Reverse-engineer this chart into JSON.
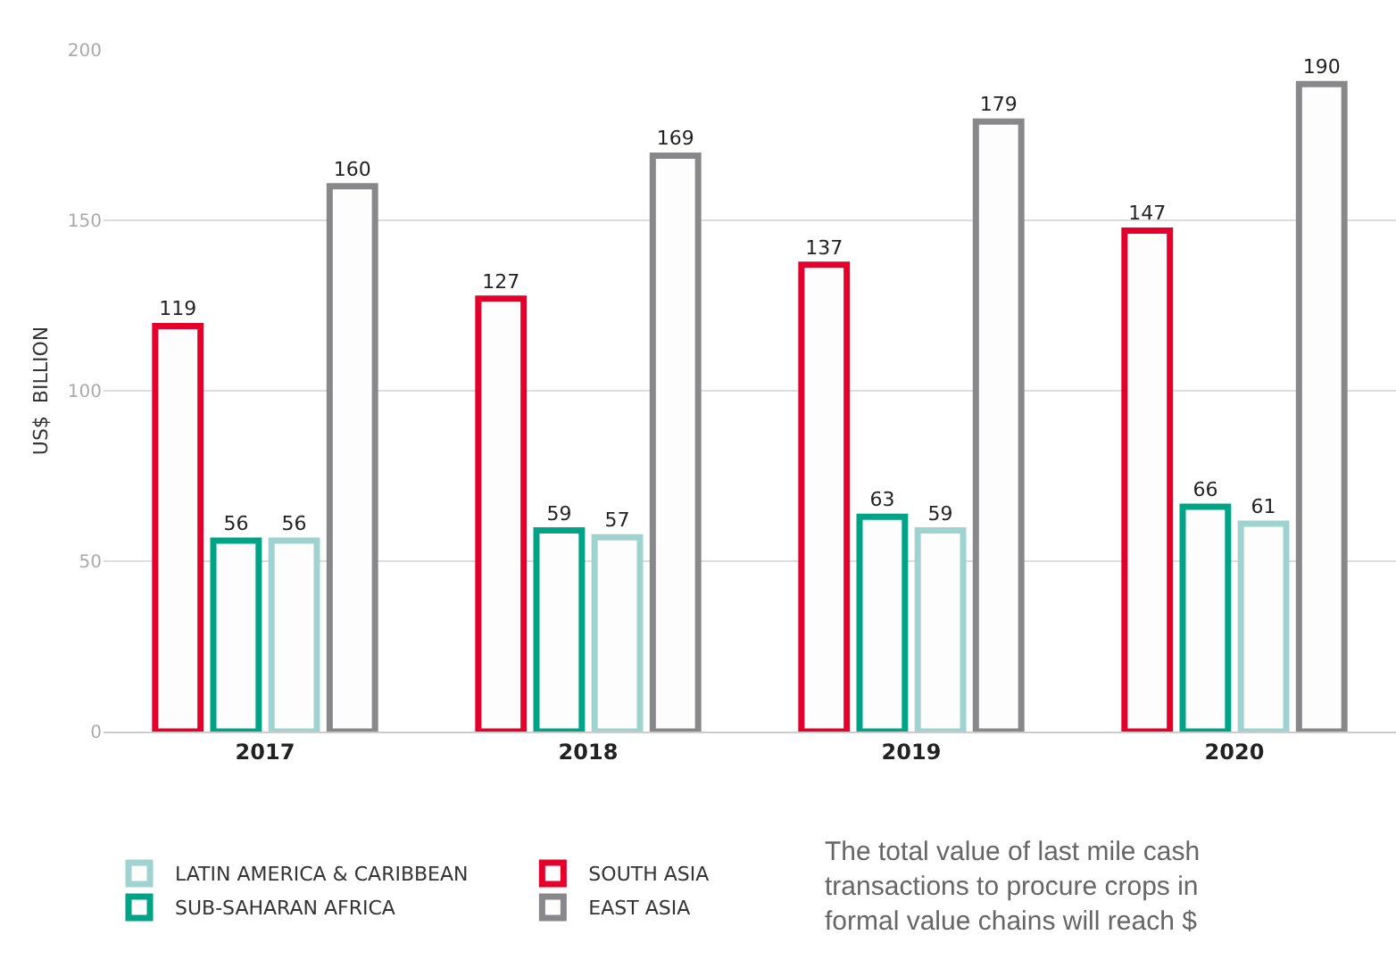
{
  "chart_data": {
    "type": "bar",
    "ylabel": "US$  BILLION",
    "categories": [
      "2017",
      "2018",
      "2019",
      "2020"
    ],
    "series": [
      {
        "name": "SOUTH ASIA",
        "color": "#e4002b",
        "values": [
          119,
          127,
          137,
          147
        ]
      },
      {
        "name": "SUB-SAHARAN AFRICA",
        "color": "#00a385",
        "values": [
          56,
          59,
          63,
          66
        ]
      },
      {
        "name": "LATIN AMERICA & CARIBBEAN",
        "color": "#9fd3d0",
        "values": [
          56,
          57,
          59,
          61
        ]
      },
      {
        "name": "EAST ASIA",
        "color": "#88888a",
        "values": [
          160,
          169,
          179,
          190
        ]
      }
    ],
    "ylim": [
      0,
      200
    ],
    "yticks": [
      0,
      50,
      100,
      150,
      200
    ],
    "grid": "y",
    "legend": "bottom",
    "data_labels": true,
    "annotations": [
      "The total value of last mile cash transactions to procure crops in formal value chains will reach $"
    ]
  }
}
